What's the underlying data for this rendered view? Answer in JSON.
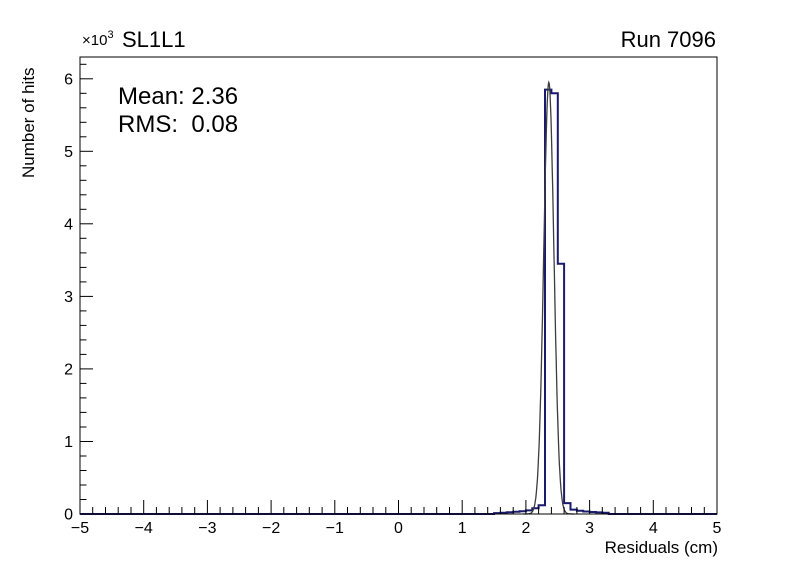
{
  "header": {
    "exponent_base": "×10",
    "exponent_power": "3",
    "title": "SL1L1",
    "run_label": "Run 7096"
  },
  "stats": {
    "mean_label": "Mean: 2.36",
    "rms_label": "RMS:  0.08"
  },
  "axes": {
    "x_title": "Residuals (cm)",
    "y_title": "Number of hits"
  },
  "chart_data": {
    "type": "bar",
    "title": "SL1L1",
    "run": "Run 7096",
    "xlabel": "Residuals (cm)",
    "ylabel": "Number of hits",
    "y_scale_exponent": 3,
    "xlim": [
      -5,
      5
    ],
    "ylim": [
      0,
      6300
    ],
    "grid": false,
    "legend": "none",
    "stats": {
      "mean": 2.36,
      "rms": 0.08
    },
    "bin_width": 0.1,
    "bins": [
      {
        "x": 1.5,
        "y": 12
      },
      {
        "x": 1.6,
        "y": 18
      },
      {
        "x": 1.7,
        "y": 25
      },
      {
        "x": 1.8,
        "y": 30
      },
      {
        "x": 1.9,
        "y": 38
      },
      {
        "x": 2.0,
        "y": 50
      },
      {
        "x": 2.1,
        "y": 80
      },
      {
        "x": 2.2,
        "y": 120
      },
      {
        "x": 2.3,
        "y": 5850
      },
      {
        "x": 2.4,
        "y": 5800
      },
      {
        "x": 2.5,
        "y": 3450
      },
      {
        "x": 2.6,
        "y": 150
      },
      {
        "x": 2.7,
        "y": 60
      },
      {
        "x": 2.8,
        "y": 45
      },
      {
        "x": 2.9,
        "y": 35
      },
      {
        "x": 3.0,
        "y": 28
      },
      {
        "x": 3.1,
        "y": 22
      },
      {
        "x": 3.2,
        "y": 18
      }
    ],
    "x_ticks": {
      "values": [
        -5,
        -4,
        -3,
        -2,
        -1,
        0,
        1,
        2,
        3,
        4,
        5
      ],
      "labels": [
        "−5",
        "−4",
        "−3",
        "−2",
        "−1",
        "0",
        "1",
        "2",
        "3",
        "4",
        "5"
      ]
    },
    "y_ticks": {
      "values": [
        0,
        1000,
        2000,
        3000,
        4000,
        5000,
        6000
      ],
      "labels": [
        "0",
        "1",
        "2",
        "3",
        "4",
        "5",
        "6"
      ]
    },
    "minor_tick_step_x": 0.2,
    "minor_tick_step_y": 200,
    "hist_color": "#1a1a6e",
    "fit": {
      "type": "gaussian",
      "mean": 2.36,
      "sigma": 0.08,
      "amplitude": 5950,
      "color": "#3d3d3d"
    }
  }
}
